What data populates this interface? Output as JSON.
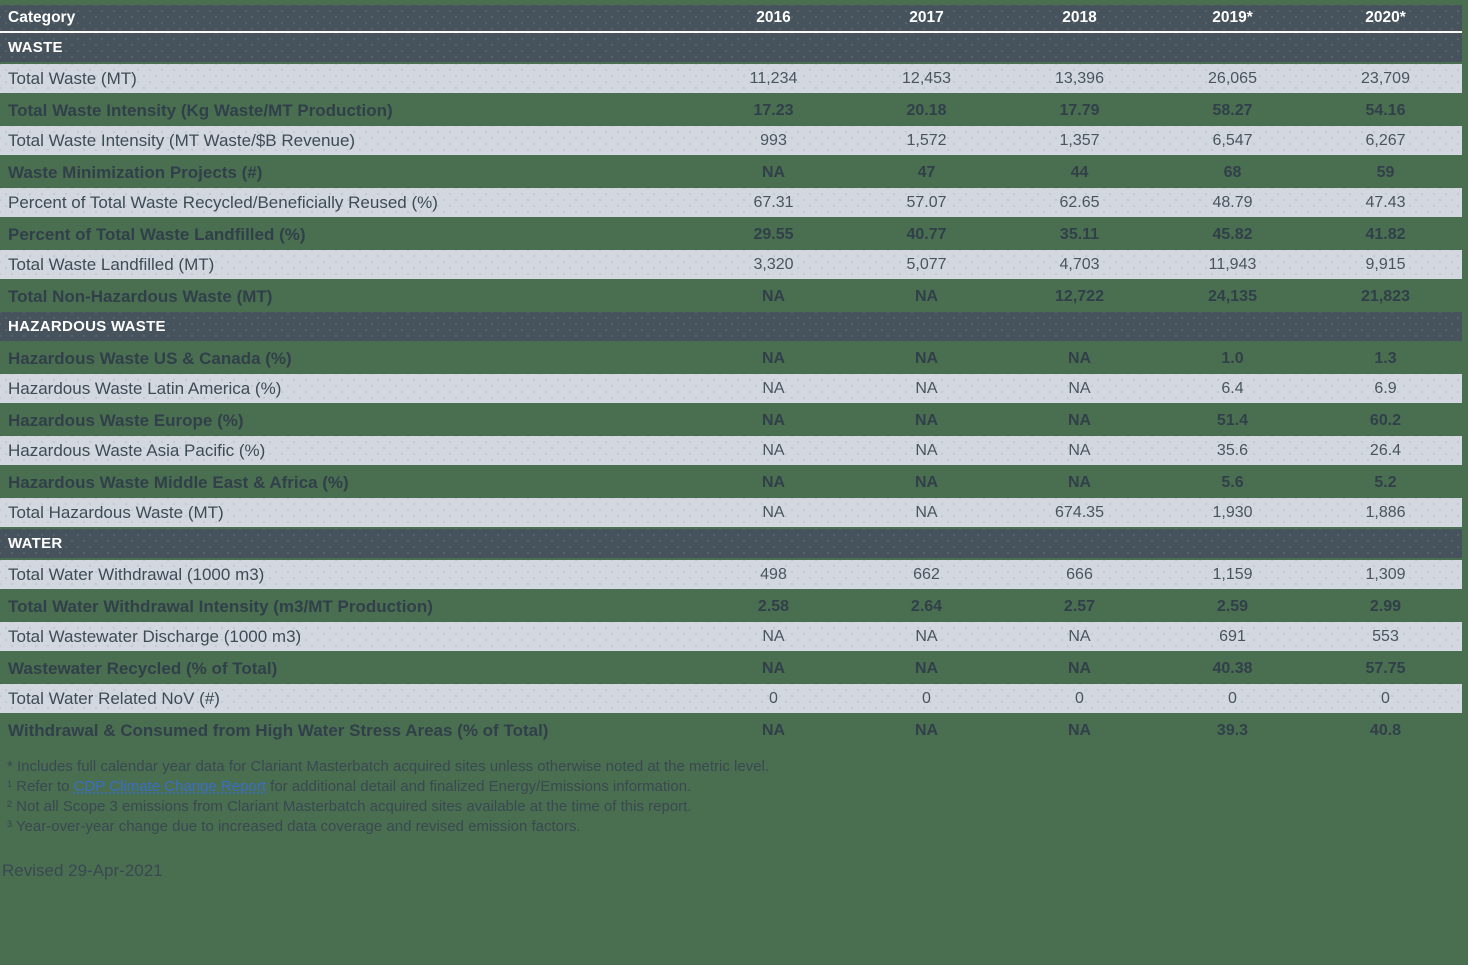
{
  "table": {
    "header": {
      "category_label": "Category",
      "years": [
        "2016",
        "2017",
        "2018",
        "2019*",
        "2020*"
      ]
    },
    "sections": [
      {
        "title": "WASTE",
        "rows": [
          {
            "label": "Total Waste (MT)",
            "values": [
              "11,234",
              "12,453",
              "13,396",
              "26,065",
              "23,709"
            ]
          },
          {
            "label": "Total Waste Intensity (Kg Waste/MT Production)",
            "values": [
              "17.23",
              "20.18",
              "17.79",
              "58.27",
              "54.16"
            ]
          },
          {
            "label": "Total Waste Intensity (MT Waste/$B Revenue)",
            "values": [
              "993",
              "1,572",
              "1,357",
              "6,547",
              "6,267"
            ]
          },
          {
            "label": "Waste Minimization Projects (#)",
            "values": [
              "NA",
              "47",
              "44",
              "68",
              "59"
            ]
          },
          {
            "label": "Percent of Total Waste Recycled/Beneficially Reused (%)",
            "values": [
              "67.31",
              "57.07",
              "62.65",
              "48.79",
              "47.43"
            ]
          },
          {
            "label": "Percent of Total Waste Landfilled (%)",
            "values": [
              "29.55",
              "40.77",
              "35.11",
              "45.82",
              "41.82"
            ]
          },
          {
            "label": "Total Waste Landfilled (MT)",
            "values": [
              "3,320",
              "5,077",
              "4,703",
              "11,943",
              "9,915"
            ]
          },
          {
            "label": "Total Non-Hazardous Waste (MT)",
            "values": [
              "NA",
              "NA",
              "12,722",
              "24,135",
              "21,823"
            ]
          }
        ]
      },
      {
        "title": "HAZARDOUS WASTE",
        "rows": [
          {
            "label": "Hazardous Waste US & Canada (%)",
            "values": [
              "NA",
              "NA",
              "NA",
              "1.0",
              "1.3"
            ]
          },
          {
            "label": "Hazardous Waste Latin America (%)",
            "values": [
              "NA",
              "NA",
              "NA",
              "6.4",
              "6.9"
            ]
          },
          {
            "label": "Hazardous Waste Europe (%)",
            "values": [
              "NA",
              "NA",
              "NA",
              "51.4",
              "60.2"
            ]
          },
          {
            "label": "Hazardous Waste Asia Pacific (%)",
            "values": [
              "NA",
              "NA",
              "NA",
              "35.6",
              "26.4"
            ]
          },
          {
            "label": "Hazardous Waste Middle East & Africa (%)",
            "values": [
              "NA",
              "NA",
              "NA",
              "5.6",
              "5.2"
            ]
          },
          {
            "label": "Total Hazardous Waste (MT)",
            "values": [
              "NA",
              "NA",
              "674.35",
              "1,930",
              "1,886"
            ]
          }
        ]
      },
      {
        "title": "WATER",
        "rows": [
          {
            "label": "Total Water Withdrawal (1000 m3)",
            "values": [
              "498",
              "662",
              "666",
              "1,159",
              "1,309"
            ]
          },
          {
            "label": "Total Water Withdrawal Intensity (m3/MT Production)",
            "values": [
              "2.58",
              "2.64",
              "2.57",
              "2.59",
              "2.99"
            ]
          },
          {
            "label": "Total Wastewater Discharge (1000 m3)",
            "values": [
              "NA",
              "NA",
              "NA",
              "691",
              "553"
            ]
          },
          {
            "label": "Wastewater Recycled (% of Total)",
            "values": [
              "NA",
              "NA",
              "NA",
              "40.38",
              "57.75"
            ]
          },
          {
            "label": "Total Water Related NoV (#)",
            "values": [
              "0",
              "0",
              "0",
              "0",
              "0"
            ]
          },
          {
            "label": "Withdrawal & Consumed from High Water Stress Areas (% of Total)",
            "values": [
              "NA",
              "NA",
              "NA",
              "39.3",
              "40.8"
            ]
          }
        ]
      }
    ]
  },
  "footnotes": [
    {
      "marker": "*",
      "pre": " Includes full calendar year data for Clariant Masterbatch acquired sites unless otherwise noted at the metric level.",
      "link": "",
      "post": ""
    },
    {
      "marker": "¹",
      "pre": " Refer to ",
      "link": "CDP Climate Change Report",
      "post": " for additional detail and finalized Energy/Emissions information."
    },
    {
      "marker": "²",
      "pre": " Not all Scope 3 emissions from Clariant Masterbatch acquired sites available at the time of this report.",
      "link": "",
      "post": ""
    },
    {
      "marker": "³",
      "pre": " Year-over-year change due to increased data coverage and revised emission factors.",
      "link": "",
      "post": ""
    }
  ],
  "revised": "Revised 29-Apr-2021",
  "colors": {
    "page_background": "#4A6F50",
    "header_background": "#46525C",
    "light_row_background": "#D3D8E0",
    "light_row_text": "#3D4B55",
    "green_row_text": "#313F4A",
    "header_text": "#FFFFFF",
    "link": "#3A6EC6",
    "footnote_text": "#3A4852"
  }
}
